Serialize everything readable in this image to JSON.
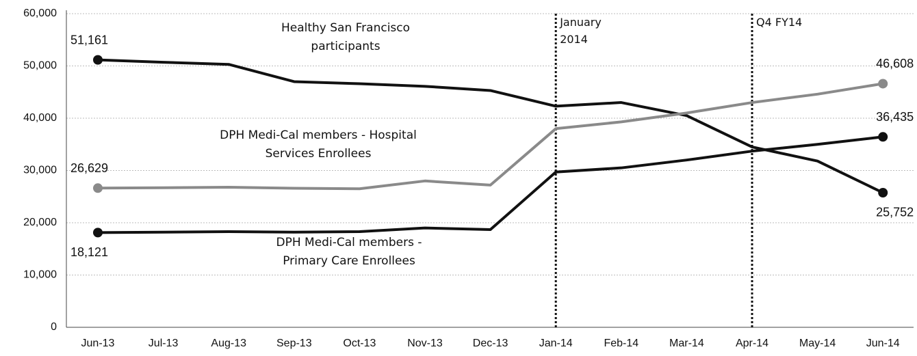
{
  "chart_data": {
    "type": "line",
    "categories": [
      "Jun-13",
      "Jul-13",
      "Aug-13",
      "Sep-13",
      "Oct-13",
      "Nov-13",
      "Dec-13",
      "Jan-14",
      "Feb-14",
      "Mar-14",
      "Apr-14",
      "May-14",
      "Jun-14"
    ],
    "series": [
      {
        "name": "Healthy San Francisco participants",
        "color": "#111111",
        "values": [
          51161,
          50700,
          50300,
          47000,
          46600,
          46100,
          45300,
          42300,
          43000,
          40500,
          34500,
          31800,
          25752
        ],
        "value_labels": [
          "51,161",
          null,
          null,
          null,
          null,
          null,
          null,
          null,
          null,
          null,
          null,
          null,
          "25,752"
        ]
      },
      {
        "name": "DPH Medi-Cal members - Hospital Services Enrollees",
        "color": "#8a8a8a",
        "values": [
          26629,
          26700,
          26800,
          26600,
          26500,
          28000,
          27200,
          38000,
          39300,
          41000,
          43000,
          44600,
          46608
        ],
        "value_labels": [
          "26,629",
          null,
          null,
          null,
          null,
          null,
          null,
          null,
          null,
          null,
          null,
          null,
          "46,608"
        ]
      },
      {
        "name": "DPH Medi-Cal members - Primary Care Enrollees",
        "color": "#111111",
        "values": [
          18121,
          18200,
          18300,
          18200,
          18300,
          19000,
          18700,
          29700,
          30500,
          32000,
          33700,
          35000,
          36435
        ],
        "value_labels": [
          "18,121",
          null,
          null,
          null,
          null,
          null,
          null,
          null,
          null,
          null,
          null,
          null,
          "36,435"
        ]
      }
    ],
    "annotations": [
      {
        "text": "January 2014",
        "x": "Jan-14"
      },
      {
        "text": "Q4 FY14",
        "x": "Apr-14"
      }
    ],
    "ylim": [
      0,
      60000
    ],
    "yticks": [
      0,
      {
        "value": 10000,
        "label": "10,000"
      },
      {
        "value": 20000,
        "label": "20,000"
      },
      {
        "value": 30000,
        "label": "30,000"
      },
      {
        "value": 40000,
        "label": "40,000"
      },
      {
        "value": 50000,
        "label": "50,000"
      },
      {
        "value": 60000,
        "label": "60,000"
      }
    ],
    "grid": true
  }
}
